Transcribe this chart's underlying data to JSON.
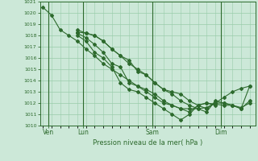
{
  "bg_color": "#cce8d8",
  "grid_color": "#99ccaa",
  "line_color": "#2d6a2d",
  "title": "Pression niveau de la mer( hPa )",
  "ylim": [
    1010,
    1021
  ],
  "yticks": [
    1010,
    1011,
    1012,
    1013,
    1014,
    1015,
    1016,
    1017,
    1018,
    1019,
    1020,
    1021
  ],
  "day_labels": [
    "Ven",
    "Lun",
    "Sam",
    "Dim"
  ],
  "day_positions": [
    2,
    14,
    38,
    62
  ],
  "series": [
    {
      "x": [
        0,
        3,
        6,
        9,
        12,
        15,
        18,
        21,
        24,
        27,
        30,
        33,
        36,
        39,
        42,
        45,
        48,
        51,
        54,
        57,
        60,
        63,
        66,
        69,
        72
      ],
      "y": [
        1020.5,
        1019.8,
        1018.5,
        1018.0,
        1017.5,
        1016.8,
        1016.2,
        1015.5,
        1015.0,
        1014.5,
        1014.0,
        1013.5,
        1013.0,
        1012.5,
        1012.0,
        1011.8,
        1011.5,
        1011.5,
        1011.5,
        1011.6,
        1012.0,
        1012.5,
        1013.0,
        1013.3,
        1013.5
      ]
    },
    {
      "x": [
        12,
        15,
        18,
        21,
        24,
        27,
        30,
        33,
        36,
        39,
        42,
        45,
        48,
        51,
        54,
        57,
        60,
        63,
        66,
        69,
        72
      ],
      "y": [
        1018.5,
        1018.2,
        1018.0,
        1017.5,
        1016.8,
        1016.2,
        1015.5,
        1015.0,
        1014.5,
        1013.8,
        1013.2,
        1013.0,
        1012.8,
        1012.2,
        1011.8,
        1011.5,
        1012.0,
        1012.0,
        1011.8,
        1011.5,
        1013.5
      ]
    },
    {
      "x": [
        12,
        15,
        18,
        21,
        24,
        27,
        30,
        33,
        36,
        39,
        42,
        45,
        48,
        51,
        54,
        57,
        60,
        63,
        66,
        69,
        72
      ],
      "y": [
        1018.3,
        1018.2,
        1018.0,
        1017.5,
        1016.8,
        1016.2,
        1015.8,
        1014.8,
        1014.5,
        1013.8,
        1013.2,
        1012.8,
        1012.2,
        1011.8,
        1011.5,
        1011.2,
        1012.2,
        1012.0,
        1011.8,
        1011.5,
        1012.2
      ]
    },
    {
      "x": [
        12,
        15,
        18,
        21,
        24,
        27,
        30,
        33,
        36,
        39,
        42,
        45,
        48,
        51,
        54,
        57,
        60
      ],
      "y": [
        1018.0,
        1017.5,
        1016.5,
        1016.0,
        1015.2,
        1013.8,
        1013.2,
        1013.0,
        1012.5,
        1012.0,
        1011.5,
        1011.0,
        1010.5,
        1011.0,
        1011.8,
        1012.0,
        1011.8
      ]
    },
    {
      "x": [
        12,
        15,
        18,
        21,
        24,
        27,
        30,
        33,
        36,
        39,
        42,
        45,
        48,
        51,
        54,
        57,
        60,
        63,
        66,
        69,
        72
      ],
      "y": [
        1018.2,
        1017.8,
        1017.2,
        1016.5,
        1015.5,
        1015.2,
        1013.8,
        1013.5,
        1013.2,
        1012.8,
        1012.2,
        1011.8,
        1011.5,
        1011.2,
        1011.8,
        1012.0,
        1011.9,
        1011.8,
        1011.8,
        1011.6,
        1012.0
      ]
    }
  ]
}
